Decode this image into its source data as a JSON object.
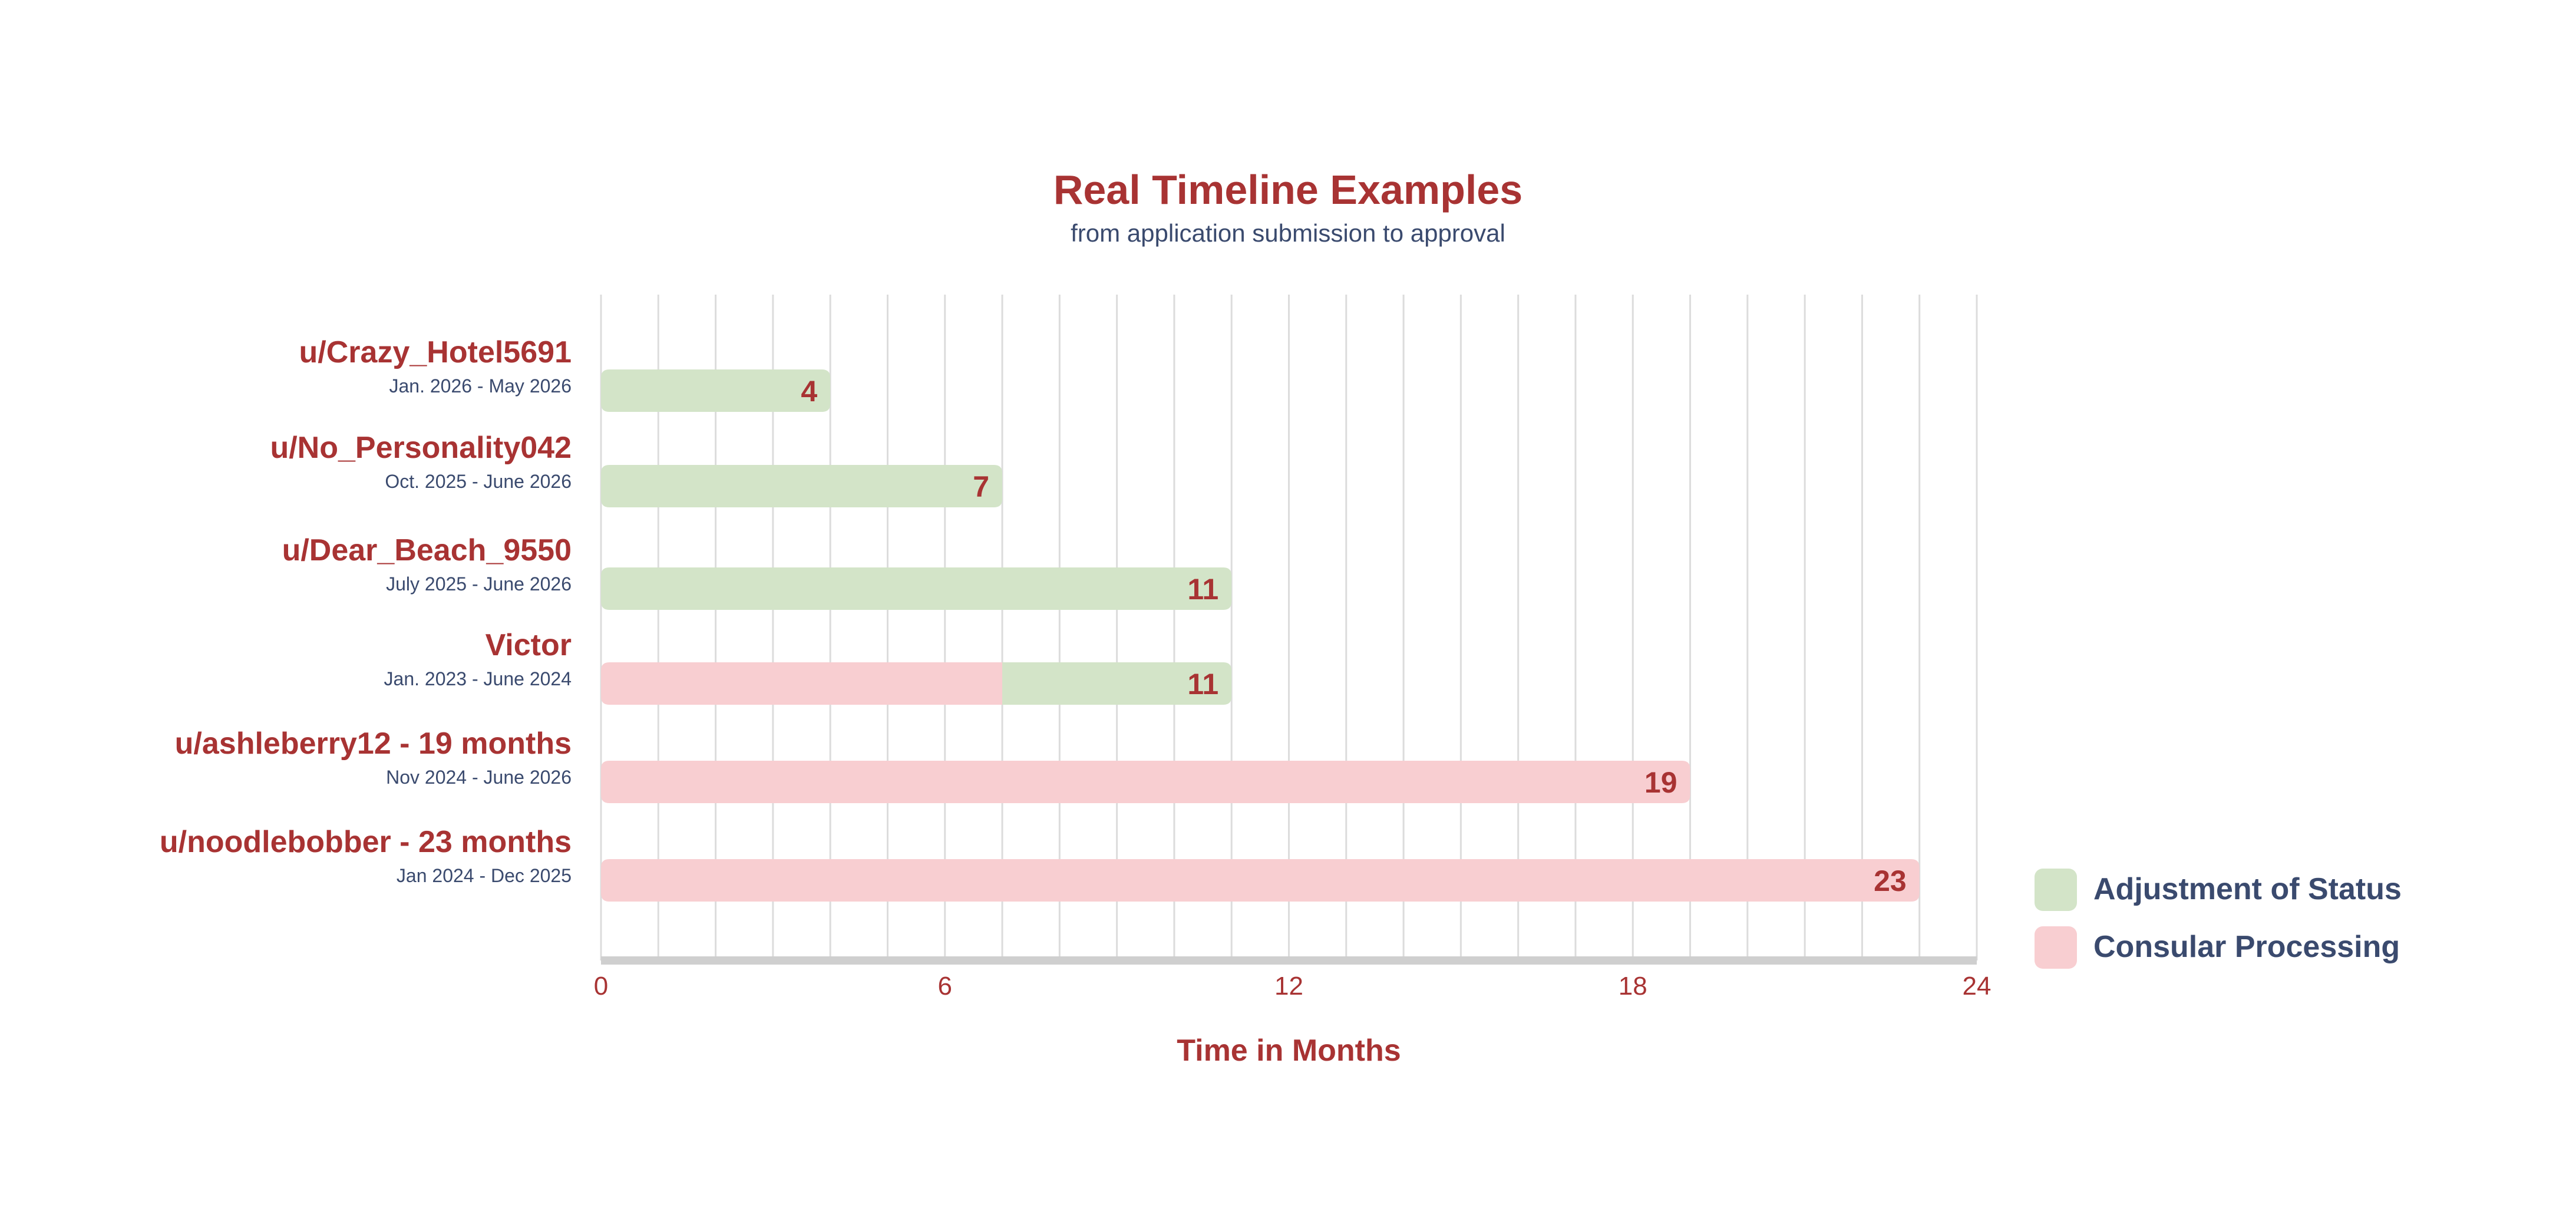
{
  "chart_data": {
    "type": "bar",
    "orientation": "horizontal",
    "stacked": true,
    "title": "Real Timeline Examples",
    "subtitle": "from application submission to approval",
    "xlabel": "Time in Months",
    "xlim": [
      0,
      24
    ],
    "xticks": [
      0,
      6,
      12,
      18,
      24
    ],
    "grid": true,
    "legend_position": "right",
    "series": [
      {
        "key": "cp",
        "name": "Consular Processing",
        "color": "#f8ced1"
      },
      {
        "key": "aos",
        "name": "Adjustment of Status",
        "color": "#d3e4c8"
      }
    ],
    "rows": [
      {
        "name": "u/Crazy_Hotel5691",
        "dates": "Jan. 2026 - May 2026",
        "segments": {
          "cp": 0,
          "aos": 4
        },
        "total_label": "4"
      },
      {
        "name": "u/No_Personality042",
        "dates": "Oct. 2025 - June 2026",
        "segments": {
          "cp": 0,
          "aos": 7
        },
        "total_label": "7"
      },
      {
        "name": "u/Dear_Beach_9550",
        "dates": "July 2025 - June 2026",
        "segments": {
          "cp": 0,
          "aos": 11
        },
        "total_label": "11"
      },
      {
        "name": "Victor",
        "dates": "Jan. 2023 - June 2024",
        "segments": {
          "cp": 7,
          "aos": 4
        },
        "total_label": "11"
      },
      {
        "name": "u/ashleberry12 - 19 months",
        "dates": "Nov 2024 - June 2026",
        "segments": {
          "cp": 19,
          "aos": 0
        },
        "total_label": "19"
      },
      {
        "name": "u/noodlebobber - 23 months",
        "dates": "Jan 2024 - Dec 2025",
        "segments": {
          "cp": 23,
          "aos": 0
        },
        "total_label": "23"
      }
    ]
  }
}
